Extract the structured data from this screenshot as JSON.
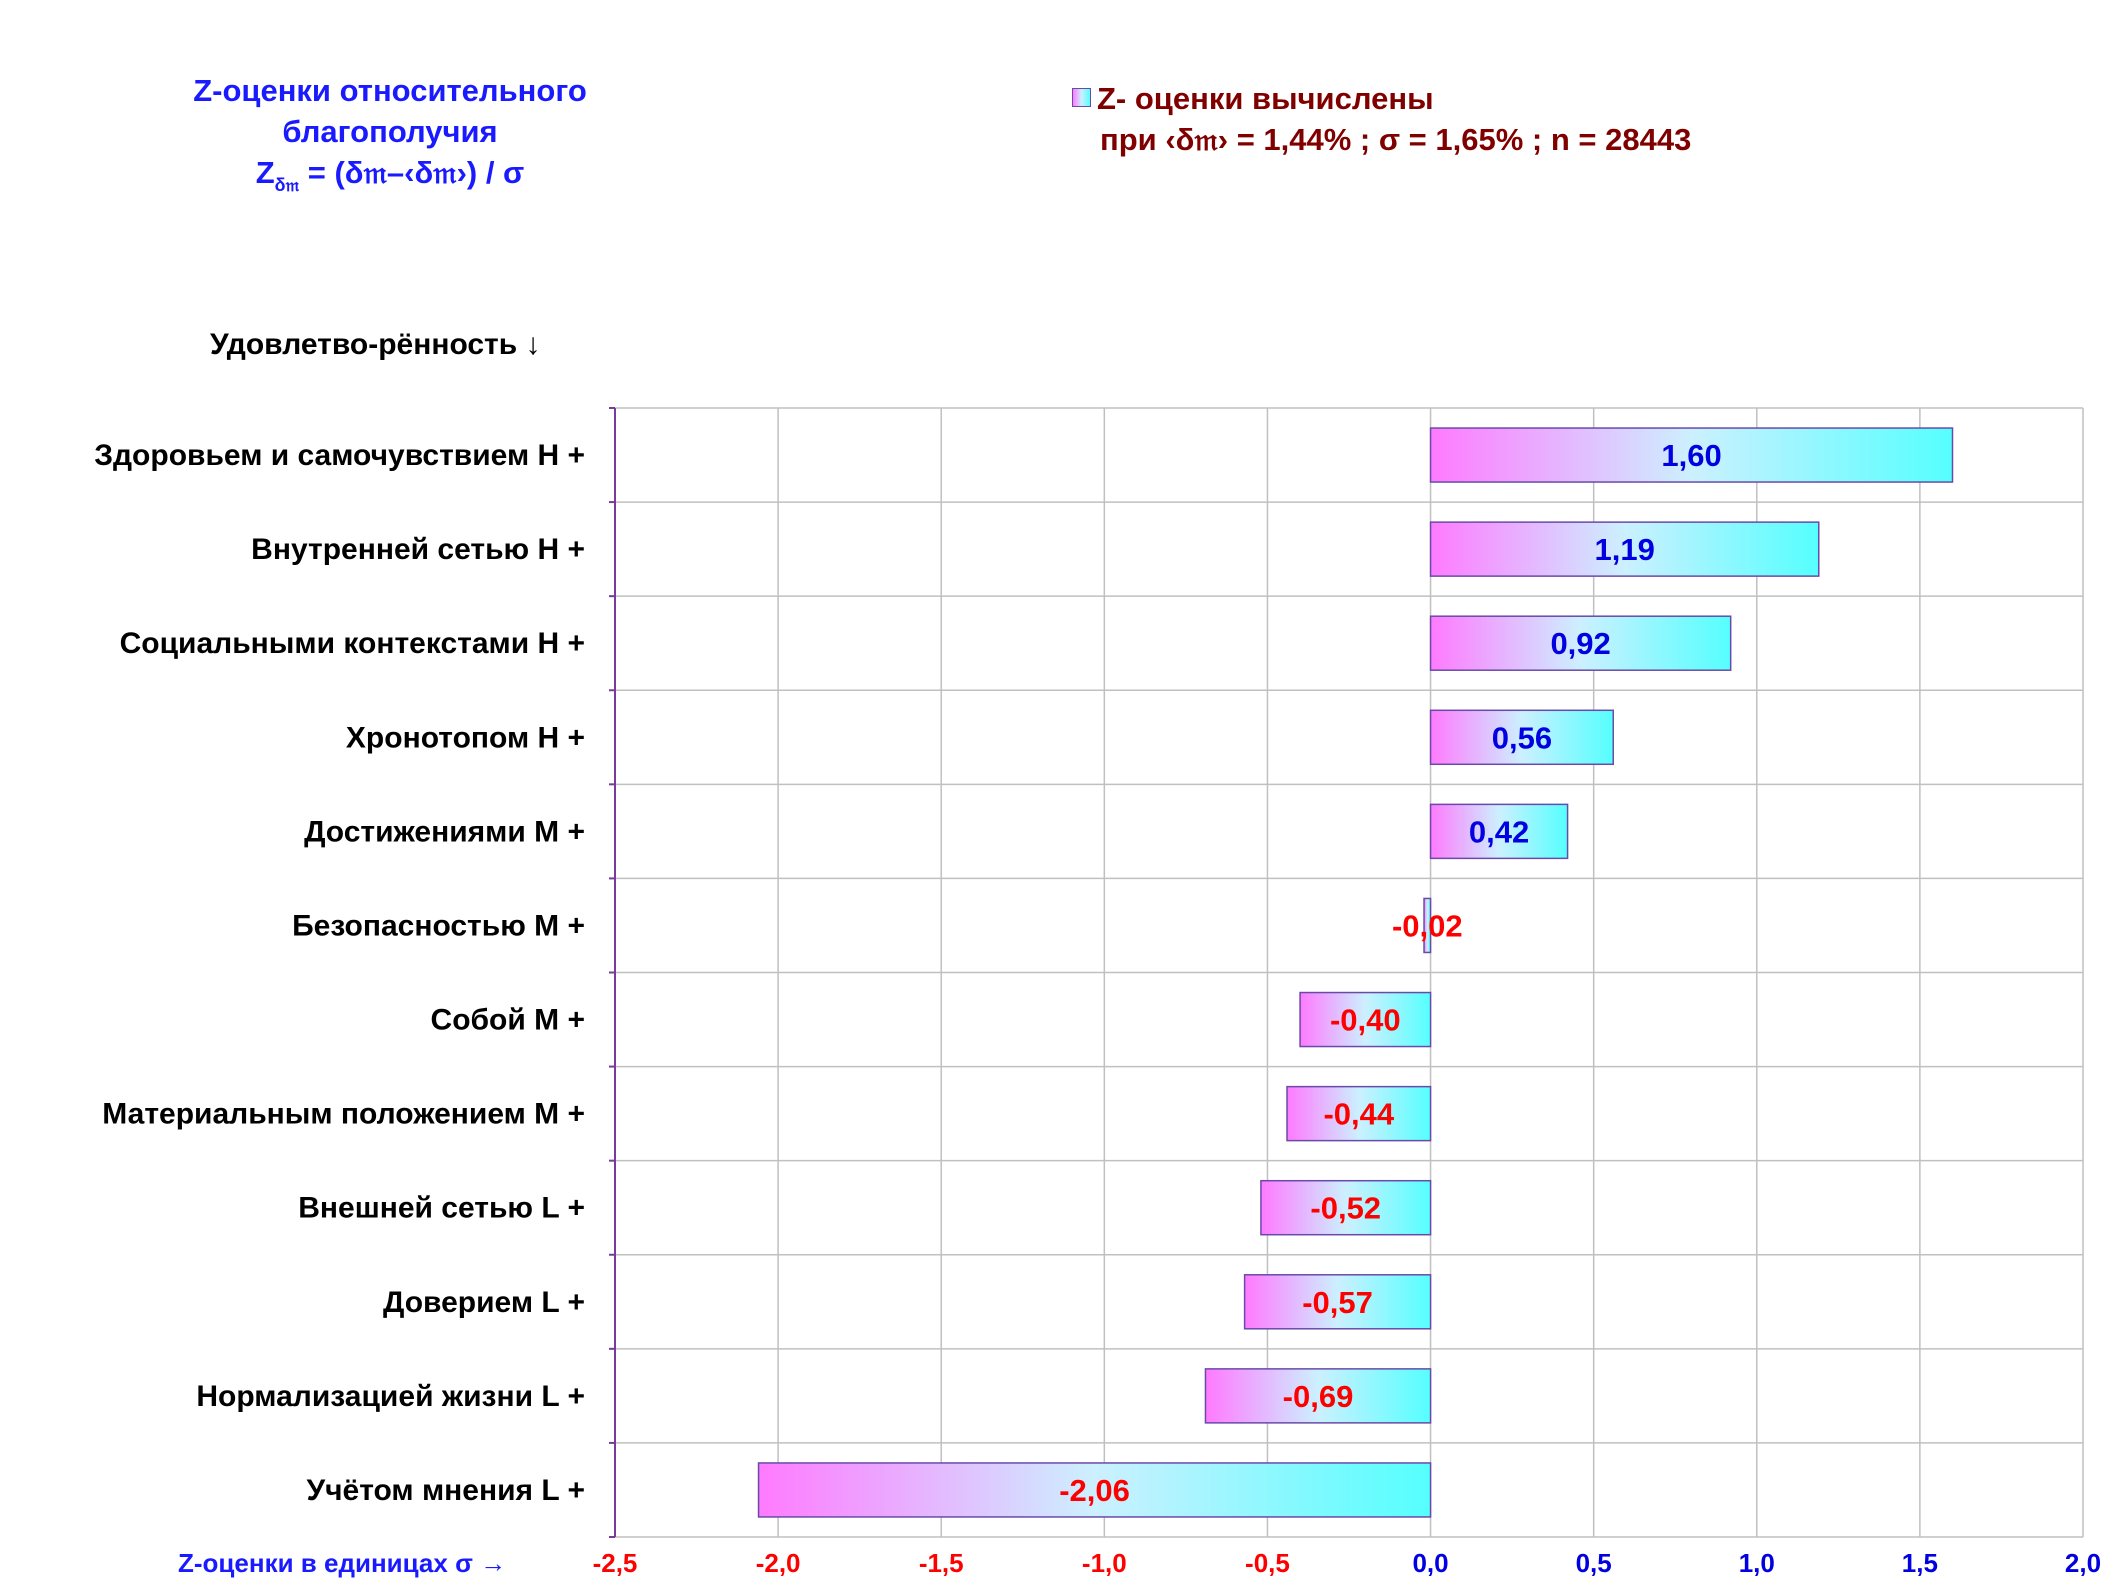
{
  "title": {
    "line1": "Z-оценки  относительного",
    "line2": "благополучия",
    "formula_main": "Z",
    "formula_sub": "δ𝔪",
    "formula_rest": " = (δ𝔪–‹δ𝔪›)  / σ"
  },
  "legend": {
    "line1": "Z- оценки вычислены",
    "line2": "при ‹δ𝔪› = 1,44% ; σ = 1,65% ; n = 28443"
  },
  "y_header": "Удовлетво-рённость ↓",
  "x_axis_label": "Z-оценки в единицах σ →",
  "colors": {
    "positive_label": "#0000e0",
    "negative_label": "#ff0000",
    "grid": "#c0c0c0",
    "axis": "#7a3a9a",
    "bar_border": "#6a4aa8",
    "bar_left": "#ff7aff",
    "bar_mid": "#ccf0ff",
    "bar_right": "#55ffff"
  },
  "chart_data": {
    "type": "bar",
    "orientation": "horizontal",
    "categories": [
      "Здоровьем и самочувствием  Н +",
      "Внутренней сетью  Н +",
      "Социальными контекстами  Н +",
      "Хронотопом  Н +",
      "Достижениями  М +",
      "Безопасностью  М +",
      "Собой  М +",
      "Материальным положением  М +",
      "Внешней сетью  L +",
      "Доверием  L +",
      "Нормализацией жизни  L +",
      "Учётом мнения  L +"
    ],
    "values": [
      1.6,
      1.19,
      0.92,
      0.56,
      0.42,
      -0.02,
      -0.4,
      -0.44,
      -0.52,
      -0.57,
      -0.69,
      -2.06
    ],
    "value_labels": [
      "1,60",
      "1,19",
      "0,92",
      "0,56",
      "0,42",
      "-0,02",
      "-0,40",
      "-0,44",
      "-0,52",
      "-0,57",
      "-0,69",
      "-2,06"
    ],
    "xlim": [
      -2.5,
      2.0
    ],
    "xticks": [
      -2.5,
      -2.0,
      -1.5,
      -1.0,
      -0.5,
      0.0,
      0.5,
      1.0,
      1.5,
      2.0
    ],
    "xtick_labels": [
      "-2,5",
      "-2,0",
      "-1,5",
      "-1,0",
      "-0,5",
      "0,0",
      "0,5",
      "1,0",
      "1,5",
      "2,0"
    ],
    "grid": true
  }
}
